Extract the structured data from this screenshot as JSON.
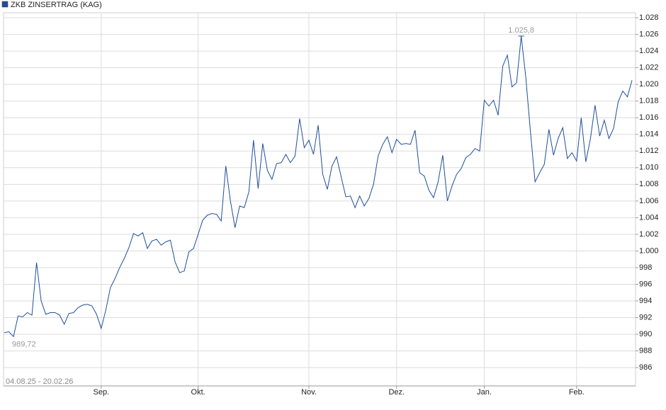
{
  "chart_data": {
    "type": "line",
    "series": [
      {
        "name": "ZKB ZINSERTRAG (KAG)",
        "color": "#1f4e9c",
        "values": [
          990.2,
          990.3,
          989.72,
          992.2,
          992.1,
          992.6,
          992.3,
          998.6,
          994.0,
          992.4,
          992.6,
          992.6,
          992.3,
          991.2,
          992.5,
          992.6,
          993.2,
          993.5,
          993.6,
          993.4,
          992.4,
          990.7,
          992.9,
          995.6,
          996.7,
          998.0,
          999.1,
          1000.4,
          1002.1,
          1001.8,
          1002.2,
          1000.3,
          1001.2,
          1001.4,
          1000.7,
          1001.1,
          1001.3,
          998.7,
          997.4,
          997.6,
          999.9,
          1000.3,
          1002.0,
          1003.7,
          1004.3,
          1004.5,
          1004.4,
          1003.6,
          1010.2,
          1006.0,
          1002.8,
          1005.4,
          1005.2,
          1007.1,
          1013.3,
          1007.5,
          1012.9,
          1009.7,
          1008.6,
          1010.5,
          1010.6,
          1011.6,
          1010.6,
          1011.4,
          1015.9,
          1012.4,
          1013.3,
          1011.6,
          1015.1,
          1009.2,
          1007.4,
          1010.2,
          1011.3,
          1008.9,
          1006.5,
          1006.6,
          1005.2,
          1006.6,
          1005.4,
          1006.3,
          1008.0,
          1011.4,
          1012.8,
          1013.7,
          1011.8,
          1013.4,
          1012.8,
          1012.9,
          1012.8,
          1014.5,
          1009.4,
          1009.0,
          1007.3,
          1006.4,
          1008.3,
          1011.5,
          1006.0,
          1007.8,
          1009.2,
          1009.9,
          1011.2,
          1011.6,
          1012.3,
          1012.0,
          1018.1,
          1017.4,
          1018.1,
          1016.3,
          1022.2,
          1023.5,
          1019.7,
          1020.2,
          1025.8,
          1020.8,
          1014.3,
          1008.3,
          1009.4,
          1010.4,
          1014.6,
          1011.5,
          1013.5,
          1014.8,
          1011.1,
          1011.8,
          1010.8,
          1016.0,
          1010.7,
          1013.5,
          1017.5,
          1013.8,
          1015.7,
          1013.5,
          1014.7,
          1017.9,
          1019.2,
          1018.5,
          1020.5
        ],
        "value_labels": [
          null,
          null,
          "989,72",
          null,
          null,
          null,
          null,
          null,
          null,
          null,
          null,
          null,
          null,
          null,
          null,
          null,
          null,
          null,
          null,
          null,
          null,
          null,
          null,
          null,
          null,
          null,
          null,
          null,
          null,
          null,
          null,
          null,
          null,
          null,
          null,
          null,
          null,
          null,
          null,
          null,
          null,
          null,
          null,
          null,
          null,
          null,
          null,
          null,
          null,
          null,
          null,
          null,
          null,
          null,
          null,
          null,
          null,
          null,
          null,
          null,
          null,
          null,
          null,
          null,
          null,
          null,
          null,
          null,
          null,
          null,
          null,
          null,
          null,
          null,
          null,
          null,
          null,
          null,
          null,
          null,
          null,
          null,
          null,
          null,
          null,
          null,
          null,
          null,
          null,
          null,
          null,
          null,
          null,
          null,
          null,
          null,
          null,
          null,
          null,
          null,
          null,
          null,
          null,
          null,
          null,
          null,
          null,
          null,
          null,
          null,
          null,
          null,
          "1.025,8",
          null,
          null,
          null,
          null,
          null,
          null,
          null,
          null,
          null,
          null,
          null,
          null,
          null,
          null,
          null,
          null,
          null,
          null,
          null,
          null,
          null,
          null,
          null,
          null
        ]
      }
    ],
    "categories": [
      null,
      null,
      null,
      null,
      null,
      null,
      null,
      null,
      null,
      null,
      null,
      null,
      null,
      null,
      null,
      null,
      null,
      null,
      null,
      null,
      null,
      "Sep.",
      null,
      null,
      null,
      null,
      null,
      null,
      null,
      null,
      null,
      null,
      null,
      null,
      null,
      null,
      null,
      null,
      null,
      null,
      null,
      null,
      "Okt.",
      null,
      null,
      null,
      null,
      null,
      null,
      null,
      null,
      null,
      null,
      null,
      null,
      null,
      null,
      null,
      null,
      null,
      null,
      null,
      null,
      null,
      null,
      null,
      "Nov.",
      null,
      null,
      null,
      null,
      null,
      null,
      null,
      null,
      null,
      null,
      null,
      null,
      null,
      null,
      null,
      null,
      null,
      null,
      "Dez.",
      null,
      null,
      null,
      null,
      null,
      null,
      null,
      null,
      null,
      null,
      null,
      null,
      null,
      null,
      null,
      null,
      null,
      null,
      "Jan.",
      null,
      null,
      null,
      null,
      null,
      null,
      null,
      null,
      null,
      null,
      null,
      null,
      null,
      null,
      null,
      null,
      null,
      null,
      null,
      "Feb.",
      null,
      null,
      null,
      null,
      null,
      null,
      null,
      null,
      null,
      null,
      null,
      null
    ],
    "period": "04.08.25 - 20.02.26",
    "ylim": [
      983.8,
      1028.6
    ],
    "yticks": [
      986,
      988,
      990,
      992,
      994,
      996,
      998,
      {
        "value": 1000,
        "label": "1.000"
      },
      {
        "value": 1002,
        "label": "1.002"
      },
      {
        "value": 1004,
        "label": "1.004"
      },
      {
        "value": 1006,
        "label": "1.006"
      },
      {
        "value": 1008,
        "label": "1.008"
      },
      {
        "value": 1010,
        "label": "1.010"
      },
      {
        "value": 1012,
        "label": "1.012"
      },
      {
        "value": 1014,
        "label": "1.014"
      },
      {
        "value": 1016,
        "label": "1.016"
      },
      {
        "value": 1018,
        "label": "1.018"
      },
      {
        "value": 1020,
        "label": "1.020"
      },
      {
        "value": 1022,
        "label": "1.022"
      },
      {
        "value": 1024,
        "label": "1.024"
      },
      {
        "value": 1026,
        "label": "1.026"
      },
      {
        "value": 1028,
        "label": "1.028"
      }
    ],
    "grid": true,
    "legend": "top-left"
  }
}
